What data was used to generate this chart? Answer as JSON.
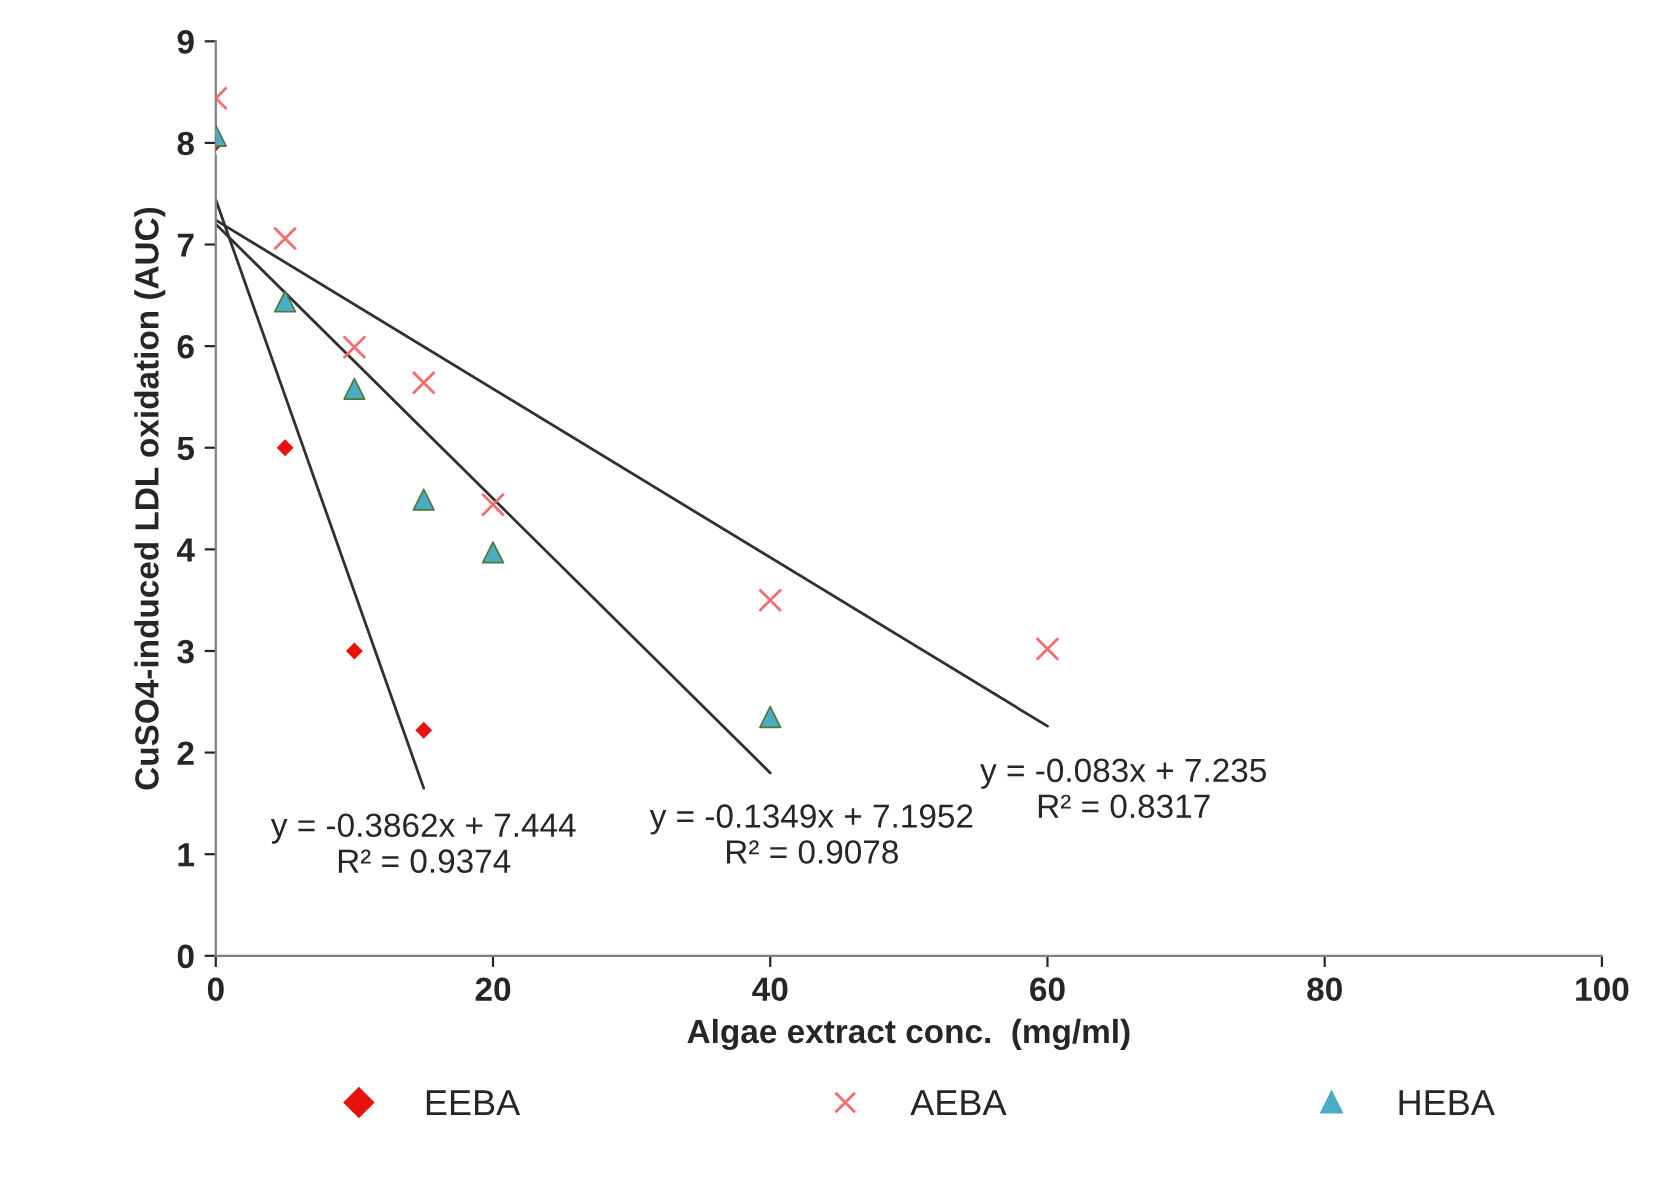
{
  "chart_data": {
    "type": "scatter",
    "xlabel": "Algae extract conc.  (mg/ml)",
    "ylabel": "CuSO4-induced LDL oxidation (AUC)",
    "xlim": [
      0,
      100
    ],
    "xticks": [
      0,
      20,
      40,
      60,
      80,
      100
    ],
    "ylim": [
      0,
      9
    ],
    "yticks": [
      0,
      1,
      2,
      3,
      4,
      5,
      6,
      7,
      8,
      9
    ],
    "grid": false,
    "legend": "bottom",
    "series": [
      {
        "name": "EEBA",
        "marker": "diamond",
        "color": "#e8120c",
        "x": [
          0,
          5,
          10,
          15
        ],
        "values": [
          8.0,
          5.0,
          3.0,
          2.22
        ]
      },
      {
        "name": "AEBA",
        "marker": "cross",
        "color": "#f26d6d",
        "x": [
          0,
          5,
          10,
          15,
          20,
          40,
          60
        ],
        "values": [
          8.44,
          7.06,
          5.99,
          5.64,
          4.44,
          3.5,
          3.02
        ]
      },
      {
        "name": "HEBA",
        "marker": "triangle",
        "color": "#4bacc6",
        "x": [
          0,
          5,
          10,
          15,
          20,
          40
        ],
        "values": [
          8.07,
          6.44,
          5.58,
          4.49,
          3.97,
          2.35
        ]
      },
      {
        "type": "line",
        "color": "#303030",
        "x": [
          0,
          15
        ],
        "values": [
          7.44,
          1.65
        ]
      },
      {
        "type": "line",
        "color": "#303030",
        "x": [
          0,
          40
        ],
        "values": [
          7.2,
          1.8
        ]
      },
      {
        "type": "line",
        "color": "#303030",
        "x": [
          0,
          60
        ],
        "values": [
          7.24,
          2.26
        ]
      }
    ],
    "annotations": [
      "y = -0.3862x + 7.444\nR² = 0.9374",
      "y = -0.1349x + 7.1952\nR² = 0.9078",
      "y = -0.083x + 7.235\nR² = 0.8317"
    ]
  }
}
